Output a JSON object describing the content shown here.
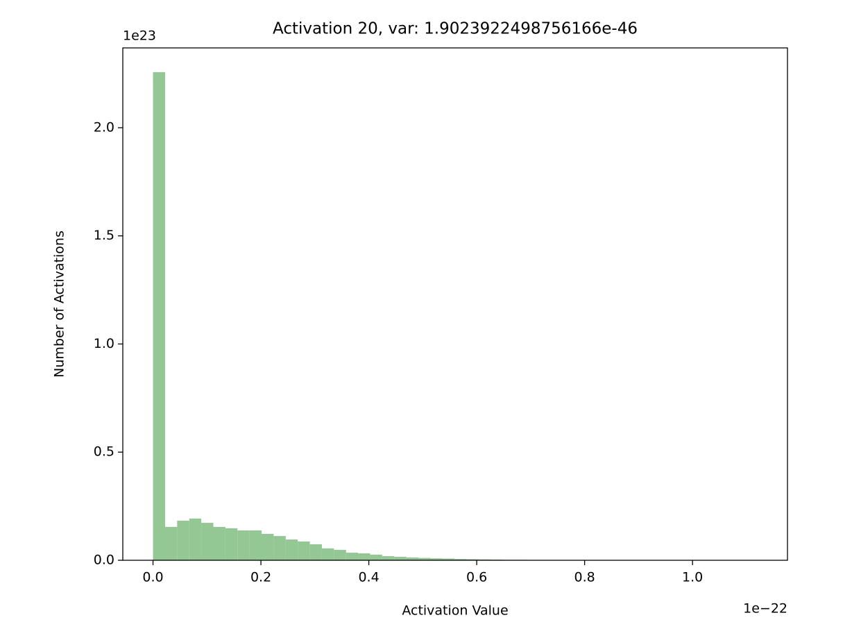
{
  "chart_data": {
    "type": "histogram",
    "title": "Activation 20, var: 1.9023922498756166e-46",
    "x_label": "Activation Value",
    "y_label": "Number of Activations",
    "x_offset_label": "1e−22",
    "y_offset_label": "1e23",
    "color": "#93c794",
    "bins": [
      0,
      0.0224,
      0.0447,
      0.0671,
      0.0894,
      0.1118,
      0.1342,
      0.1565,
      0.1789,
      0.2012,
      0.2236,
      0.246,
      0.2683,
      0.2907,
      0.313,
      0.3354,
      0.3578,
      0.3801,
      0.4025,
      0.4248,
      0.4472,
      0.4696,
      0.4919,
      0.5143,
      0.5366,
      0.559,
      0.5814,
      0.6037,
      0.6261,
      0.6484,
      0.6708,
      0.6932,
      0.7155,
      0.7379,
      0.7602,
      0.7826,
      0.805,
      0.8273,
      0.8497,
      0.872,
      0.8944,
      0.9168,
      0.9391,
      0.9615,
      0.9838,
      1.0062,
      1.0286,
      1.0509,
      1.0733,
      1.0956,
      1.118
    ],
    "values": [
      2.257,
      0.154,
      0.183,
      0.193,
      0.173,
      0.154,
      0.148,
      0.138,
      0.138,
      0.122,
      0.112,
      0.096,
      0.087,
      0.074,
      0.055,
      0.048,
      0.035,
      0.032,
      0.026,
      0.019,
      0.016,
      0.013,
      0.011,
      0.009,
      0.008,
      0.006,
      0.005,
      0.004,
      0.003,
      0.002,
      0.002,
      0.001,
      0.001,
      0,
      0,
      0,
      0,
      0,
      0,
      0,
      0,
      0,
      0,
      0,
      0,
      0,
      0,
      0,
      0,
      0
    ],
    "xlim": [
      -0.056,
      1.176
    ],
    "ylim": [
      0,
      2.369
    ],
    "xticks": [
      {
        "value": 0,
        "label": "0.0"
      },
      0.2,
      0.4,
      0.6,
      0.8,
      {
        "value": 1,
        "label": "1.0"
      }
    ],
    "yticks": [
      {
        "value": 0,
        "label": "0.0"
      },
      0.5,
      {
        "value": 1,
        "label": "1.0"
      },
      1.5,
      {
        "value": 2,
        "label": "2.0"
      }
    ]
  }
}
